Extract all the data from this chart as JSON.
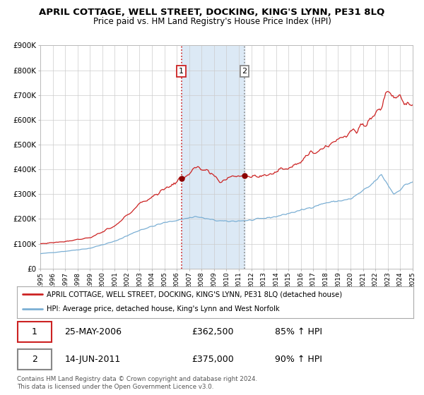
{
  "title": "APRIL COTTAGE, WELL STREET, DOCKING, KING'S LYNN, PE31 8LQ",
  "subtitle": "Price paid vs. HM Land Registry's House Price Index (HPI)",
  "ylim": [
    0,
    900000
  ],
  "yticks": [
    0,
    100000,
    200000,
    300000,
    400000,
    500000,
    600000,
    700000,
    800000,
    900000
  ],
  "ytick_labels": [
    "£0",
    "£100K",
    "£200K",
    "£300K",
    "£400K",
    "£500K",
    "£600K",
    "£700K",
    "£800K",
    "£900K"
  ],
  "year_start": 1995,
  "year_end": 2025,
  "hpi_color": "#7bafd4",
  "price_color": "#cc2222",
  "marker_color": "#8b0000",
  "vline1_color": "#cc2222",
  "vline2_color": "#888888",
  "shade_color": "#dce9f5",
  "transaction1_year": 2006.37,
  "transaction2_year": 2011.45,
  "transaction1_price": 362500,
  "transaction2_price": 375000,
  "transaction1_label": "25-MAY-2006",
  "transaction2_label": "14-JUN-2011",
  "transaction1_pct": "85% ↑ HPI",
  "transaction2_pct": "90% ↑ HPI",
  "legend_red_label": "APRIL COTTAGE, WELL STREET, DOCKING, KING'S LYNN, PE31 8LQ (detached house)",
  "legend_blue_label": "HPI: Average price, detached house, King's Lynn and West Norfolk",
  "footnote": "Contains HM Land Registry data © Crown copyright and database right 2024.\nThis data is licensed under the Open Government Licence v3.0.",
  "background_color": "#ffffff",
  "grid_color": "#cccccc",
  "title_fontsize": 9.5,
  "subtitle_fontsize": 8.5
}
